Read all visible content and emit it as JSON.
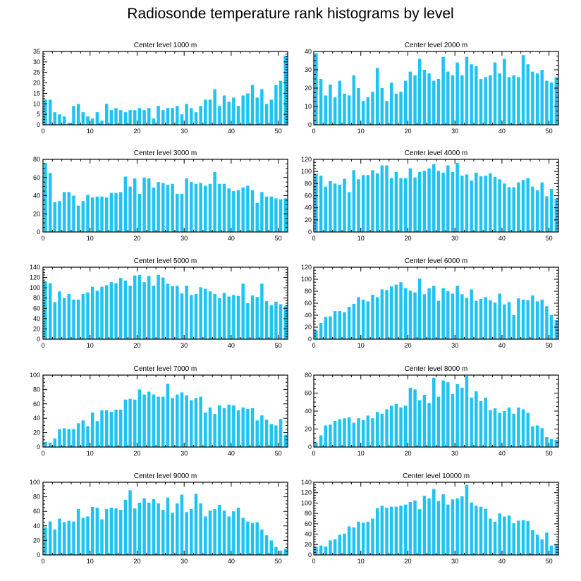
{
  "figure": {
    "title": "Radiosonde temperature rank histograms by level"
  },
  "colors": {
    "bar": "#1ec3f2",
    "axis": "#000000"
  },
  "chart_data": [
    {
      "type": "bar",
      "title": "Center level 1000 m",
      "x": [
        0,
        1,
        2,
        3,
        4,
        5,
        6,
        7,
        8,
        9,
        10,
        11,
        12,
        13,
        14,
        15,
        16,
        17,
        18,
        19,
        20,
        21,
        22,
        23,
        24,
        25,
        26,
        27,
        28,
        29,
        30,
        31,
        32,
        33,
        34,
        35,
        36,
        37,
        38,
        39,
        40,
        41,
        42,
        43,
        44,
        45,
        46,
        47,
        48,
        49,
        50,
        51
      ],
      "values": [
        12,
        12,
        6,
        5,
        4,
        1,
        9,
        10,
        6,
        4,
        3,
        6,
        2,
        10,
        7,
        8,
        7,
        6,
        7,
        7,
        8,
        7,
        8,
        3,
        9,
        7,
        8,
        8,
        9,
        5,
        10,
        8,
        6,
        9,
        12,
        12,
        17,
        9,
        14,
        11,
        13,
        9,
        14,
        15,
        19,
        13,
        17,
        10,
        12,
        19,
        21,
        33
      ],
      "xlim": [
        0,
        52
      ],
      "ylim": [
        0,
        35
      ],
      "xticks": [
        0,
        10,
        20,
        30,
        40,
        50
      ],
      "yticks": [
        0,
        5,
        10,
        15,
        20,
        25,
        30,
        35
      ]
    },
    {
      "type": "bar",
      "title": "Center level 2000 m",
      "x": [
        0,
        1,
        2,
        3,
        4,
        5,
        6,
        7,
        8,
        9,
        10,
        11,
        12,
        13,
        14,
        15,
        16,
        17,
        18,
        19,
        20,
        21,
        22,
        23,
        24,
        25,
        26,
        27,
        28,
        29,
        30,
        31,
        32,
        33,
        34,
        35,
        36,
        37,
        38,
        39,
        40,
        41,
        42,
        43,
        44,
        45,
        46,
        47,
        48,
        49,
        50,
        51
      ],
      "values": [
        39,
        25,
        16,
        22,
        15,
        24,
        17,
        16,
        27,
        20,
        13,
        15,
        18,
        31,
        20,
        13,
        23,
        17,
        18,
        24,
        29,
        27,
        36,
        30,
        28,
        24,
        25,
        37,
        29,
        27,
        34,
        27,
        37,
        33,
        32,
        25,
        26,
        27,
        34,
        28,
        36,
        26,
        27,
        26,
        38,
        33,
        29,
        28,
        30,
        24,
        23,
        26
      ],
      "xlim": [
        0,
        52
      ],
      "ylim": [
        0,
        40
      ],
      "xticks": [
        0,
        10,
        20,
        30,
        40,
        50
      ],
      "yticks": [
        0,
        10,
        20,
        30,
        40
      ]
    },
    {
      "type": "bar",
      "title": "Center level 3000 m",
      "x": [
        0,
        1,
        2,
        3,
        4,
        5,
        6,
        7,
        8,
        9,
        10,
        11,
        12,
        13,
        14,
        15,
        16,
        17,
        18,
        19,
        20,
        21,
        22,
        23,
        24,
        25,
        26,
        27,
        28,
        29,
        30,
        31,
        32,
        33,
        34,
        35,
        36,
        37,
        38,
        39,
        40,
        41,
        42,
        43,
        44,
        45,
        46,
        47,
        48,
        49,
        50,
        51
      ],
      "values": [
        76,
        65,
        33,
        34,
        44,
        44,
        40,
        29,
        34,
        41,
        38,
        39,
        39,
        38,
        43,
        43,
        44,
        61,
        50,
        59,
        42,
        60,
        59,
        49,
        55,
        54,
        52,
        53,
        42,
        42,
        59,
        55,
        53,
        54,
        51,
        53,
        66,
        53,
        53,
        48,
        45,
        46,
        49,
        51,
        46,
        32,
        44,
        39,
        39,
        37,
        36,
        37
      ],
      "xlim": [
        0,
        52
      ],
      "ylim": [
        0,
        80
      ],
      "xticks": [
        0,
        10,
        20,
        30,
        40,
        50
      ],
      "yticks": [
        0,
        20,
        40,
        60,
        80
      ]
    },
    {
      "type": "bar",
      "title": "Center level 4000 m",
      "x": [
        0,
        1,
        2,
        3,
        4,
        5,
        6,
        7,
        8,
        9,
        10,
        11,
        12,
        13,
        14,
        15,
        16,
        17,
        18,
        19,
        20,
        21,
        22,
        23,
        24,
        25,
        26,
        27,
        28,
        29,
        30,
        31,
        32,
        33,
        34,
        35,
        36,
        37,
        38,
        39,
        40,
        41,
        42,
        43,
        44,
        45,
        46,
        47,
        48,
        49,
        50,
        51
      ],
      "values": [
        96,
        93,
        75,
        84,
        80,
        78,
        88,
        66,
        102,
        87,
        94,
        94,
        102,
        97,
        110,
        110,
        89,
        99,
        89,
        89,
        105,
        90,
        99,
        101,
        105,
        112,
        101,
        98,
        110,
        99,
        114,
        93,
        95,
        85,
        98,
        92,
        93,
        97,
        91,
        87,
        80,
        74,
        74,
        82,
        86,
        89,
        75,
        69,
        82,
        59,
        71,
        55
      ],
      "xlim": [
        0,
        52
      ],
      "ylim": [
        0,
        120
      ],
      "xticks": [
        0,
        10,
        20,
        30,
        40,
        50
      ],
      "yticks": [
        0,
        20,
        40,
        60,
        80,
        100,
        120
      ]
    },
    {
      "type": "bar",
      "title": "Center level 5000 m",
      "x": [
        0,
        1,
        2,
        3,
        4,
        5,
        6,
        7,
        8,
        9,
        10,
        11,
        12,
        13,
        14,
        15,
        16,
        17,
        18,
        19,
        20,
        21,
        22,
        23,
        24,
        25,
        26,
        27,
        28,
        29,
        30,
        31,
        32,
        33,
        34,
        35,
        36,
        37,
        38,
        39,
        40,
        41,
        42,
        43,
        44,
        45,
        46,
        47,
        48,
        49,
        50,
        51
      ],
      "values": [
        113,
        109,
        72,
        93,
        80,
        88,
        77,
        77,
        88,
        91,
        102,
        94,
        102,
        105,
        111,
        109,
        119,
        114,
        104,
        124,
        125,
        111,
        123,
        104,
        125,
        120,
        108,
        103,
        104,
        89,
        104,
        86,
        88,
        101,
        98,
        93,
        88,
        80,
        90,
        83,
        86,
        84,
        108,
        70,
        85,
        82,
        108,
        74,
        66,
        73,
        68,
        64
      ],
      "xlim": [
        0,
        52
      ],
      "ylim": [
        0,
        140
      ],
      "xticks": [
        0,
        10,
        20,
        30,
        40,
        50
      ],
      "yticks": [
        0,
        20,
        40,
        60,
        80,
        100,
        120,
        140
      ]
    },
    {
      "type": "bar",
      "title": "Center level 6000 m",
      "x": [
        0,
        1,
        2,
        3,
        4,
        5,
        6,
        7,
        8,
        9,
        10,
        11,
        12,
        13,
        14,
        15,
        16,
        17,
        18,
        19,
        20,
        21,
        22,
        23,
        24,
        25,
        26,
        27,
        28,
        29,
        30,
        31,
        32,
        33,
        34,
        35,
        36,
        37,
        38,
        39,
        40,
        41,
        42,
        43,
        44,
        45,
        46,
        47,
        48,
        49,
        50,
        51
      ],
      "values": [
        15,
        27,
        37,
        38,
        47,
        47,
        45,
        54,
        59,
        70,
        66,
        63,
        74,
        70,
        83,
        82,
        88,
        91,
        95,
        85,
        81,
        78,
        101,
        75,
        85,
        89,
        64,
        85,
        80,
        76,
        89,
        75,
        69,
        83,
        64,
        67,
        70,
        65,
        61,
        76,
        58,
        62,
        40,
        68,
        66,
        65,
        73,
        63,
        66,
        55,
        40,
        32
      ],
      "xlim": [
        0,
        52
      ],
      "ylim": [
        0,
        120
      ],
      "xticks": [
        0,
        10,
        20,
        30,
        40,
        50
      ],
      "yticks": [
        0,
        20,
        40,
        60,
        80,
        100,
        120
      ]
    },
    {
      "type": "bar",
      "title": "Center level 7000 m",
      "x": [
        0,
        1,
        2,
        3,
        4,
        5,
        6,
        7,
        8,
        9,
        10,
        11,
        12,
        13,
        14,
        15,
        16,
        17,
        18,
        19,
        20,
        21,
        22,
        23,
        24,
        25,
        26,
        27,
        28,
        29,
        30,
        31,
        32,
        33,
        34,
        35,
        36,
        37,
        38,
        39,
        40,
        41,
        42,
        43,
        44,
        45,
        46,
        47,
        48,
        49,
        50,
        51
      ],
      "values": [
        7,
        6,
        12,
        25,
        26,
        25,
        25,
        33,
        37,
        29,
        48,
        36,
        51,
        51,
        49,
        52,
        52,
        66,
        67,
        66,
        80,
        73,
        77,
        73,
        70,
        70,
        88,
        68,
        73,
        76,
        72,
        65,
        68,
        70,
        48,
        55,
        46,
        58,
        54,
        59,
        58,
        51,
        55,
        53,
        54,
        37,
        44,
        38,
        32,
        30,
        39,
        17
      ],
      "xlim": [
        0,
        52
      ],
      "ylim": [
        0,
        100
      ],
      "xticks": [
        0,
        10,
        20,
        30,
        40,
        50
      ],
      "yticks": [
        0,
        20,
        40,
        60,
        80,
        100
      ]
    },
    {
      "type": "bar",
      "title": "Center level 8000 m",
      "x": [
        0,
        1,
        2,
        3,
        4,
        5,
        6,
        7,
        8,
        9,
        10,
        11,
        12,
        13,
        14,
        15,
        16,
        17,
        18,
        19,
        20,
        21,
        22,
        23,
        24,
        25,
        26,
        27,
        28,
        29,
        30,
        31,
        32,
        33,
        34,
        35,
        36,
        37,
        38,
        39,
        40,
        41,
        42,
        43,
        44,
        45,
        46,
        47,
        48,
        49,
        50,
        51
      ],
      "values": [
        5,
        13,
        24,
        25,
        29,
        31,
        32,
        33,
        27,
        32,
        30,
        35,
        32,
        39,
        37,
        42,
        46,
        48,
        44,
        46,
        66,
        64,
        52,
        58,
        49,
        77,
        56,
        74,
        72,
        59,
        70,
        66,
        79,
        55,
        62,
        51,
        55,
        41,
        43,
        38,
        40,
        44,
        37,
        44,
        42,
        38,
        23,
        24,
        21,
        11,
        9,
        8
      ],
      "xlim": [
        0,
        52
      ],
      "ylim": [
        0,
        80
      ],
      "xticks": [
        0,
        10,
        20,
        30,
        40,
        50
      ],
      "yticks": [
        0,
        20,
        40,
        60,
        80
      ]
    },
    {
      "type": "bar",
      "title": "Center level 9000 m",
      "x": [
        0,
        1,
        2,
        3,
        4,
        5,
        6,
        7,
        8,
        9,
        10,
        11,
        12,
        13,
        14,
        15,
        16,
        17,
        18,
        19,
        20,
        21,
        22,
        23,
        24,
        25,
        26,
        27,
        28,
        29,
        30,
        31,
        32,
        33,
        34,
        35,
        36,
        37,
        38,
        39,
        40,
        41,
        42,
        43,
        44,
        45,
        46,
        47,
        48,
        49,
        50,
        51
      ],
      "values": [
        38,
        46,
        35,
        50,
        45,
        47,
        46,
        63,
        51,
        53,
        66,
        65,
        49,
        63,
        65,
        64,
        62,
        76,
        89,
        64,
        72,
        78,
        72,
        77,
        71,
        62,
        79,
        58,
        71,
        83,
        59,
        63,
        84,
        71,
        53,
        61,
        63,
        69,
        61,
        53,
        60,
        65,
        51,
        46,
        44,
        45,
        35,
        27,
        20,
        11,
        6,
        8
      ],
      "xlim": [
        0,
        52
      ],
      "ylim": [
        0,
        100
      ],
      "xticks": [
        0,
        10,
        20,
        30,
        40,
        50
      ],
      "yticks": [
        0,
        20,
        40,
        60,
        80,
        100
      ]
    },
    {
      "type": "bar",
      "title": "Center level 10000 m",
      "x": [
        0,
        1,
        2,
        3,
        4,
        5,
        6,
        7,
        8,
        9,
        10,
        11,
        12,
        13,
        14,
        15,
        16,
        17,
        18,
        19,
        20,
        21,
        22,
        23,
        24,
        25,
        26,
        27,
        28,
        29,
        30,
        31,
        32,
        33,
        34,
        35,
        36,
        37,
        38,
        39,
        40,
        41,
        42,
        43,
        44,
        45,
        46,
        47,
        48,
        49,
        50,
        51
      ],
      "values": [
        16,
        18,
        16,
        28,
        30,
        39,
        41,
        55,
        53,
        64,
        62,
        64,
        70,
        90,
        95,
        91,
        93,
        93,
        95,
        97,
        102,
        105,
        88,
        114,
        109,
        127,
        104,
        117,
        97,
        107,
        109,
        113,
        135,
        101,
        95,
        93,
        89,
        70,
        64,
        80,
        74,
        76,
        61,
        66,
        67,
        65,
        48,
        39,
        30,
        43,
        18,
        20
      ],
      "xlim": [
        0,
        52
      ],
      "ylim": [
        0,
        140
      ],
      "xticks": [
        0,
        10,
        20,
        30,
        40,
        50
      ],
      "yticks": [
        0,
        20,
        40,
        60,
        80,
        100,
        120,
        140
      ]
    }
  ]
}
